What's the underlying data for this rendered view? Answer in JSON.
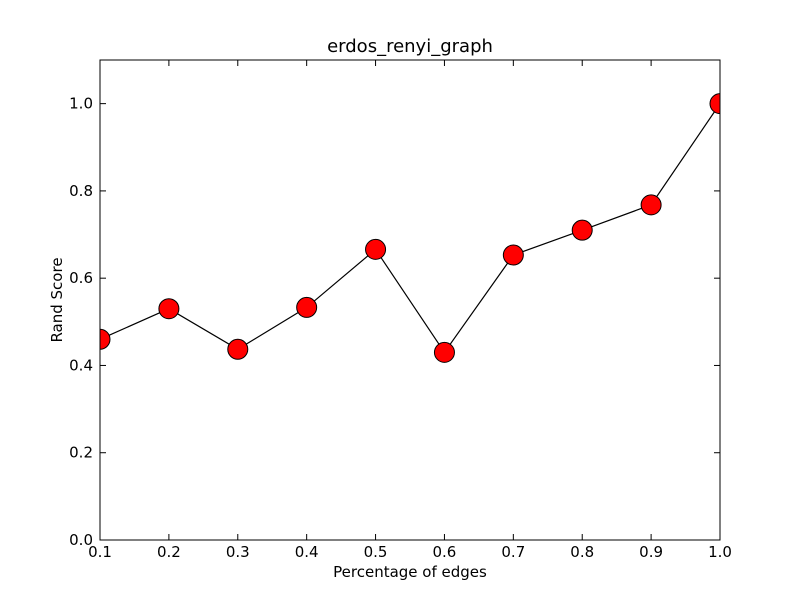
{
  "chart_data": {
    "type": "line",
    "title": "erdos_renyi_graph",
    "xlabel": "Percentage of edges",
    "ylabel": "Rand Score",
    "x": [
      0.1,
      0.2,
      0.3,
      0.4,
      0.5,
      0.6,
      0.7,
      0.8,
      0.9,
      1.0
    ],
    "series": [
      {
        "values": [
          0.46,
          0.53,
          0.437,
          0.533,
          0.666,
          0.43,
          0.653,
          0.71,
          0.768,
          1.0
        ],
        "line_color": "#000000",
        "marker": "circle",
        "marker_color": "#ff0000",
        "marker_edge_color": "#000000"
      }
    ],
    "xlim": [
      0.1,
      1.0
    ],
    "ylim": [
      0.0,
      1.1
    ],
    "xticks": [
      0.1,
      0.2,
      0.3,
      0.4,
      0.5,
      0.6,
      0.7,
      0.8,
      0.9,
      1.0
    ],
    "xtick_labels": [
      "0.1",
      "0.2",
      "0.3",
      "0.4",
      "0.5",
      "0.6",
      "0.7",
      "0.8",
      "0.9",
      "1.0"
    ],
    "yticks": [
      0.0,
      0.2,
      0.4,
      0.6,
      0.8,
      1.0
    ],
    "ytick_labels": [
      "0.0",
      "0.2",
      "0.4",
      "0.6",
      "0.8",
      "1.0"
    ],
    "grid": false,
    "legend": "none"
  }
}
